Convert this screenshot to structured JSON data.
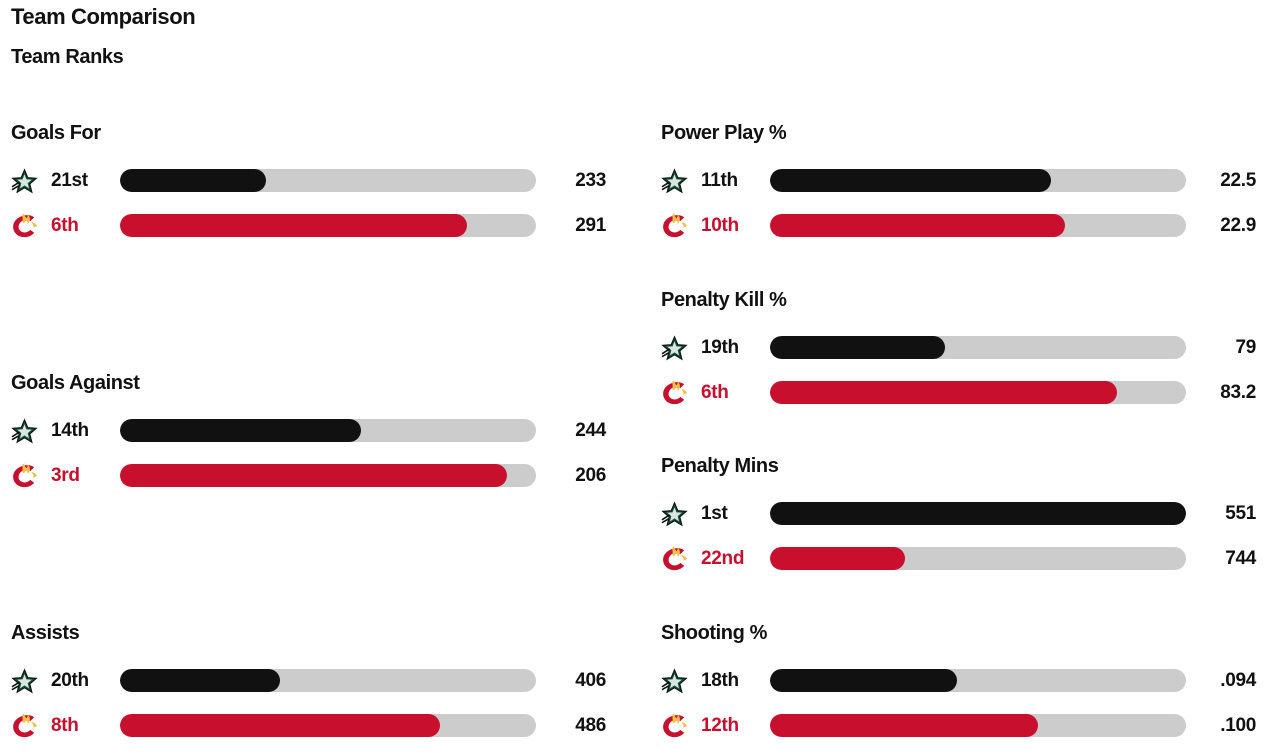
{
  "page": {
    "title": "Team Comparison",
    "subtitle": "Team Ranks"
  },
  "teams": {
    "home": {
      "logo": "dallas-stars-logo",
      "color": "#111111"
    },
    "away": {
      "logo": "calgary-flames-logo",
      "color": "#c8102e"
    }
  },
  "colors": {
    "track": "#cccccc"
  },
  "stats": [
    {
      "title": "Goals For",
      "home": {
        "rank": "21st",
        "value": "233",
        "fill": 0.35
      },
      "away": {
        "rank": "6th",
        "value": "291",
        "fill": 0.835
      }
    },
    {
      "title": "Goals Against",
      "home": {
        "rank": "14th",
        "value": "244",
        "fill": 0.58
      },
      "away": {
        "rank": "3rd",
        "value": "206",
        "fill": 0.93
      }
    },
    {
      "title": "Assists",
      "home": {
        "rank": "20th",
        "value": "406",
        "fill": 0.385
      },
      "away": {
        "rank": "8th",
        "value": "486",
        "fill": 0.77
      }
    },
    {
      "title": "Power Play %",
      "home": {
        "rank": "11th",
        "value": "22.5",
        "fill": 0.675
      },
      "away": {
        "rank": "10th",
        "value": "22.9",
        "fill": 0.71
      }
    },
    {
      "title": "Penalty Kill %",
      "home": {
        "rank": "19th",
        "value": "79",
        "fill": 0.42
      },
      "away": {
        "rank": "6th",
        "value": "83.2",
        "fill": 0.835
      }
    },
    {
      "title": "Penalty Mins",
      "home": {
        "rank": "1st",
        "value": "551",
        "fill": 1.0
      },
      "away": {
        "rank": "22nd",
        "value": "744",
        "fill": 0.325
      }
    },
    {
      "title": "Shooting %",
      "home": {
        "rank": "18th",
        "value": ".094",
        "fill": 0.45
      },
      "away": {
        "rank": "12th",
        "value": ".100",
        "fill": 0.645
      }
    }
  ],
  "chart_data": {
    "type": "bar",
    "title": "Team Ranks",
    "categories": [
      "Goals For",
      "Goals Against",
      "Assists",
      "Power Play %",
      "Penalty Kill %",
      "Penalty Mins",
      "Shooting %"
    ],
    "series": [
      {
        "ranks": [
          "21st",
          "14th",
          "20th",
          "11th",
          "19th",
          "1st",
          "18th"
        ],
        "values": [
          233,
          244,
          406,
          22.5,
          79,
          551,
          0.094
        ]
      },
      {
        "ranks": [
          "6th",
          "3rd",
          "8th",
          "10th",
          "6th",
          "22nd",
          "12th"
        ],
        "values": [
          291,
          206,
          486,
          22.9,
          83.2,
          744,
          0.1
        ]
      }
    ]
  }
}
